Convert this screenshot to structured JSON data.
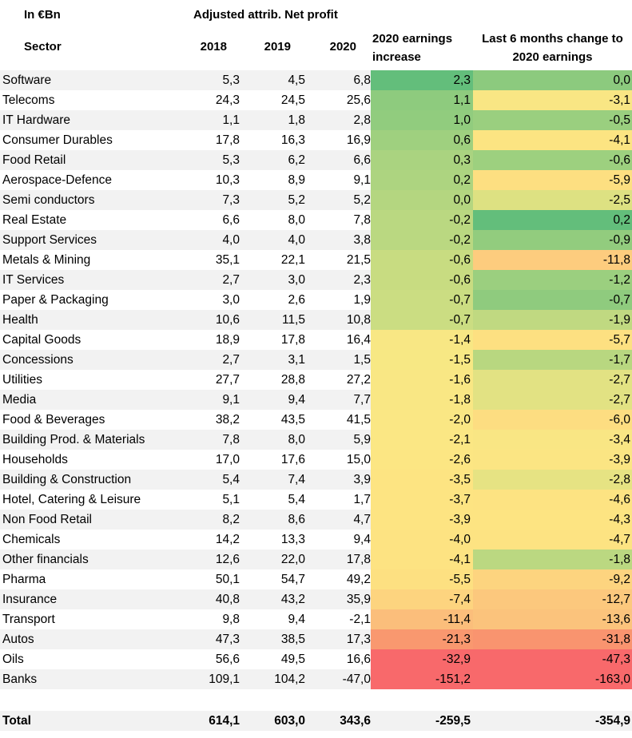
{
  "header": {
    "unit_label": "In €Bn",
    "group_label": "Adjusted attrib. Net profit",
    "sector_label": "Sector",
    "years": [
      "2018",
      "2019",
      "2020"
    ],
    "inc_label_1": "2020 earnings",
    "inc_label_2": "increase",
    "chg_label_1": "Last 6 months change to",
    "chg_label_2": "2020 earnings"
  },
  "rows": [
    {
      "sector": "Software",
      "y2018": "5,3",
      "y2019": "4,5",
      "y2020": "6,8",
      "inc": "2,3",
      "chg": "0,0",
      "inc_color": "#63be7b",
      "chg_color": "#8cca7e"
    },
    {
      "sector": "Telecoms",
      "y2018": "24,3",
      "y2019": "24,5",
      "y2020": "25,6",
      "inc": "1,1",
      "chg": "-3,1",
      "inc_color": "#8ecb7e",
      "chg_color": "#f9e684"
    },
    {
      "sector": "IT Hardware",
      "y2018": "1,1",
      "y2019": "1,8",
      "y2020": "2,8",
      "inc": "1,0",
      "chg": "-0,5",
      "inc_color": "#91cc7e",
      "chg_color": "#9acf7f"
    },
    {
      "sector": "Consumer Durables",
      "y2018": "17,8",
      "y2019": "16,3",
      "y2020": "16,9",
      "inc": "0,6",
      "chg": "-4,1",
      "inc_color": "#9fd07f",
      "chg_color": "#fce482"
    },
    {
      "sector": "Food Retail",
      "y2018": "5,3",
      "y2019": "6,2",
      "y2020": "6,6",
      "inc": "0,3",
      "chg": "-0,6",
      "inc_color": "#aad380",
      "chg_color": "#9dd07f"
    },
    {
      "sector": "Aerospace-Defence",
      "y2018": "10,3",
      "y2019": "8,9",
      "y2020": "9,1",
      "inc": "0,2",
      "chg": "-5,9",
      "inc_color": "#add480",
      "chg_color": "#fddf81"
    },
    {
      "sector": "Semi conductors",
      "y2018": "7,3",
      "y2019": "5,2",
      "y2020": "5,2",
      "inc": "0,0",
      "chg": "-2,5",
      "inc_color": "#b4d680",
      "chg_color": "#dde182"
    },
    {
      "sector": "Real Estate",
      "y2018": "6,6",
      "y2019": "8,0",
      "y2020": "7,8",
      "inc": "-0,2",
      "chg": "0,2",
      "inc_color": "#bad881",
      "chg_color": "#63be7b"
    },
    {
      "sector": "Support Services",
      "y2018": "4,0",
      "y2019": "4,0",
      "y2020": "3,8",
      "inc": "-0,2",
      "chg": "-0,9",
      "inc_color": "#bad881",
      "chg_color": "#92cc7e"
    },
    {
      "sector": "Metals & Mining",
      "y2018": "35,1",
      "y2019": "22,1",
      "y2020": "21,5",
      "inc": "-0,6",
      "chg": "-11,8",
      "inc_color": "#c8dc81",
      "chg_color": "#fdcc7e"
    },
    {
      "sector": "IT Services",
      "y2018": "2,7",
      "y2019": "3,0",
      "y2020": "2,3",
      "inc": "-0,6",
      "chg": "-1,2",
      "inc_color": "#c8dc81",
      "chg_color": "#9bcf7f"
    },
    {
      "sector": "Paper & Packaging",
      "y2018": "3,0",
      "y2019": "2,6",
      "y2020": "1,9",
      "inc": "-0,7",
      "chg": "-0,7",
      "inc_color": "#cbdd82",
      "chg_color": "#8fcb7e"
    },
    {
      "sector": "Health",
      "y2018": "10,6",
      "y2019": "11,5",
      "y2020": "10,8",
      "inc": "-0,7",
      "chg": "-1,9",
      "inc_color": "#cbdd82",
      "chg_color": "#c0d981"
    },
    {
      "sector": "Capital Goods",
      "y2018": "18,9",
      "y2019": "17,8",
      "y2020": "16,4",
      "inc": "-1,4",
      "chg": "-5,7",
      "inc_color": "#f8e784",
      "chg_color": "#fde081"
    },
    {
      "sector": "Concessions",
      "y2018": "2,7",
      "y2019": "3,1",
      "y2020": "1,5",
      "inc": "-1,5",
      "chg": "-1,7",
      "inc_color": "#f7e884",
      "chg_color": "#b8d780"
    },
    {
      "sector": "Utilities",
      "y2018": "27,7",
      "y2019": "28,8",
      "y2020": "27,2",
      "inc": "-1,6",
      "chg": "-2,7",
      "inc_color": "#f9e784",
      "chg_color": "#e2e283"
    },
    {
      "sector": "Media",
      "y2018": "9,1",
      "y2019": "9,4",
      "y2020": "7,7",
      "inc": "-1,8",
      "chg": "-2,7",
      "inc_color": "#f9e784",
      "chg_color": "#e2e283"
    },
    {
      "sector": "Food & Beverages",
      "y2018": "38,2",
      "y2019": "43,5",
      "y2020": "41,5",
      "inc": "-2,0",
      "chg": "-6,0",
      "inc_color": "#fae784",
      "chg_color": "#fddd81"
    },
    {
      "sector": "Building Prod. & Materials",
      "y2018": "7,8",
      "y2019": "8,0",
      "y2020": "5,9",
      "inc": "-2,1",
      "chg": "-3,4",
      "inc_color": "#fbe784",
      "chg_color": "#f9e684"
    },
    {
      "sector": "Households",
      "y2018": "17,0",
      "y2019": "17,6",
      "y2020": "15,0",
      "inc": "-2,6",
      "chg": "-3,9",
      "inc_color": "#fce683",
      "chg_color": "#fbe583"
    },
    {
      "sector": "Building & Construction",
      "y2018": "5,4",
      "y2019": "7,4",
      "y2020": "3,9",
      "inc": "-3,5",
      "chg": "-2,8",
      "inc_color": "#fde482",
      "chg_color": "#e6e383"
    },
    {
      "sector": "Hotel, Catering & Leisure",
      "y2018": "5,1",
      "y2019": "5,4",
      "y2020": "1,7",
      "inc": "-3,7",
      "chg": "-4,6",
      "inc_color": "#fde482",
      "chg_color": "#fde382"
    },
    {
      "sector": "Non Food Retail",
      "y2018": "8,2",
      "y2019": "8,6",
      "y2020": "4,7",
      "inc": "-3,9",
      "chg": "-4,3",
      "inc_color": "#fde482",
      "chg_color": "#fde482"
    },
    {
      "sector": "Chemicals",
      "y2018": "14,2",
      "y2019": "13,3",
      "y2020": "9,4",
      "inc": "-4,0",
      "chg": "-4,7",
      "inc_color": "#fde382",
      "chg_color": "#fde382"
    },
    {
      "sector": "Other financials",
      "y2018": "12,6",
      "y2019": "22,0",
      "y2020": "17,8",
      "inc": "-4,1",
      "chg": "-1,8",
      "inc_color": "#fde382",
      "chg_color": "#bbd881"
    },
    {
      "sector": "Pharma",
      "y2018": "50,1",
      "y2019": "54,7",
      "y2020": "49,2",
      "inc": "-5,5",
      "chg": "-9,2",
      "inc_color": "#fde081",
      "chg_color": "#fdd47f"
    },
    {
      "sector": "Insurance",
      "y2018": "40,8",
      "y2019": "43,2",
      "y2020": "35,9",
      "inc": "-7,4",
      "chg": "-12,7",
      "inc_color": "#fdd47f",
      "chg_color": "#fcc87d"
    },
    {
      "sector": "Transport",
      "y2018": "9,8",
      "y2019": "9,4",
      "y2020": "-2,1",
      "inc": "-11,4",
      "chg": "-13,6",
      "inc_color": "#fbbe7b",
      "chg_color": "#fbc37c"
    },
    {
      "sector": "Autos",
      "y2018": "47,3",
      "y2019": "38,5",
      "y2020": "17,3",
      "inc": "-21,3",
      "chg": "-31,8",
      "inc_color": "#f9986f",
      "chg_color": "#f9946f"
    },
    {
      "sector": "Oils",
      "y2018": "56,6",
      "y2019": "49,5",
      "y2020": "16,6",
      "inc": "-32,9",
      "chg": "-47,3",
      "inc_color": "#f8696b",
      "chg_color": "#f8696b"
    },
    {
      "sector": "Banks",
      "y2018": "109,1",
      "y2019": "104,2",
      "y2020": "-47,0",
      "inc": "-151,2",
      "chg": "-163,0",
      "inc_color": "#f8696b",
      "chg_color": "#f8696b"
    }
  ],
  "total": {
    "label": "Total",
    "y2018": "614,1",
    "y2019": "603,0",
    "y2020": "343,6",
    "inc": "-259,5",
    "chg": "-354,9"
  }
}
